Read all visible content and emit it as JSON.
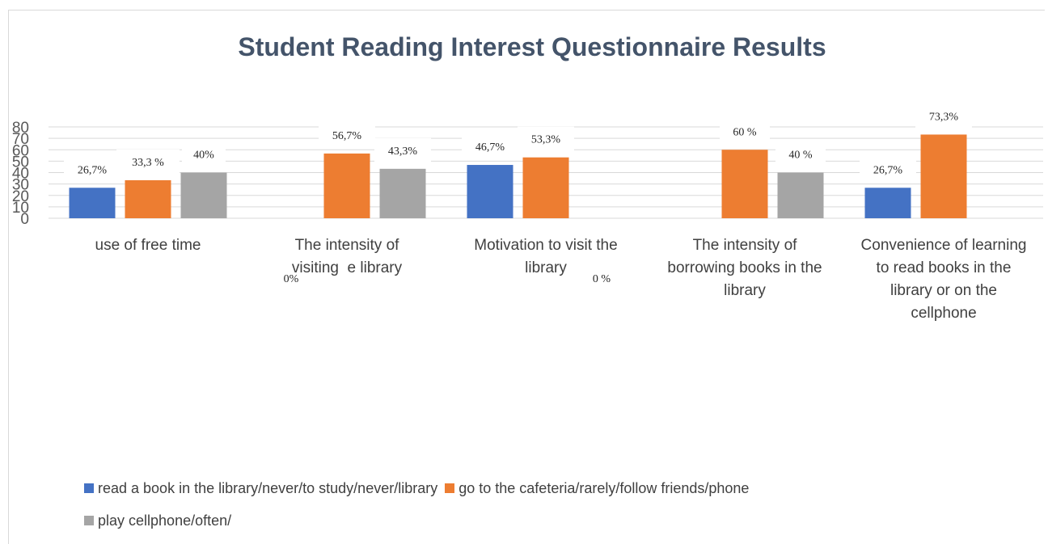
{
  "chart_data": {
    "type": "bar",
    "title": "Student Reading Interest Questionnaire Results",
    "categories": [
      "use of free time",
      "The intensity of visiting  e library",
      "Motivation to visit the library",
      "The intensity of borrowing books in the library",
      "Convenience of learning to read books in the library or on the cellphone"
    ],
    "ylim": [
      0,
      80
    ],
    "yticks": [
      0,
      10,
      20,
      30,
      40,
      50,
      60,
      70,
      80
    ],
    "grid": true,
    "legend_position": "bottom",
    "series": [
      {
        "name": "read a book in the library/never/to study/never/library",
        "color": "#4472c4",
        "values": [
          26.7,
          0,
          46.7,
          null,
          26.7
        ],
        "labels": [
          "26,7%",
          "0%",
          "46,7%",
          "",
          "26,7%"
        ]
      },
      {
        "name": "go to the cafeteria/rarely/follow friends/phone",
        "color": "#ed7d31",
        "values": [
          33.3,
          56.7,
          53.3,
          60,
          73.3
        ],
        "labels": [
          "33,3 %",
          "56,7%",
          "53,3%",
          "60 %",
          "73,3%"
        ]
      },
      {
        "name": "play cellphone/often/",
        "color": "#a5a5a5",
        "values": [
          40,
          43.3,
          0,
          40,
          null
        ],
        "labels": [
          "40%",
          "43,3%",
          "0 %",
          "40 %",
          ""
        ]
      }
    ]
  }
}
